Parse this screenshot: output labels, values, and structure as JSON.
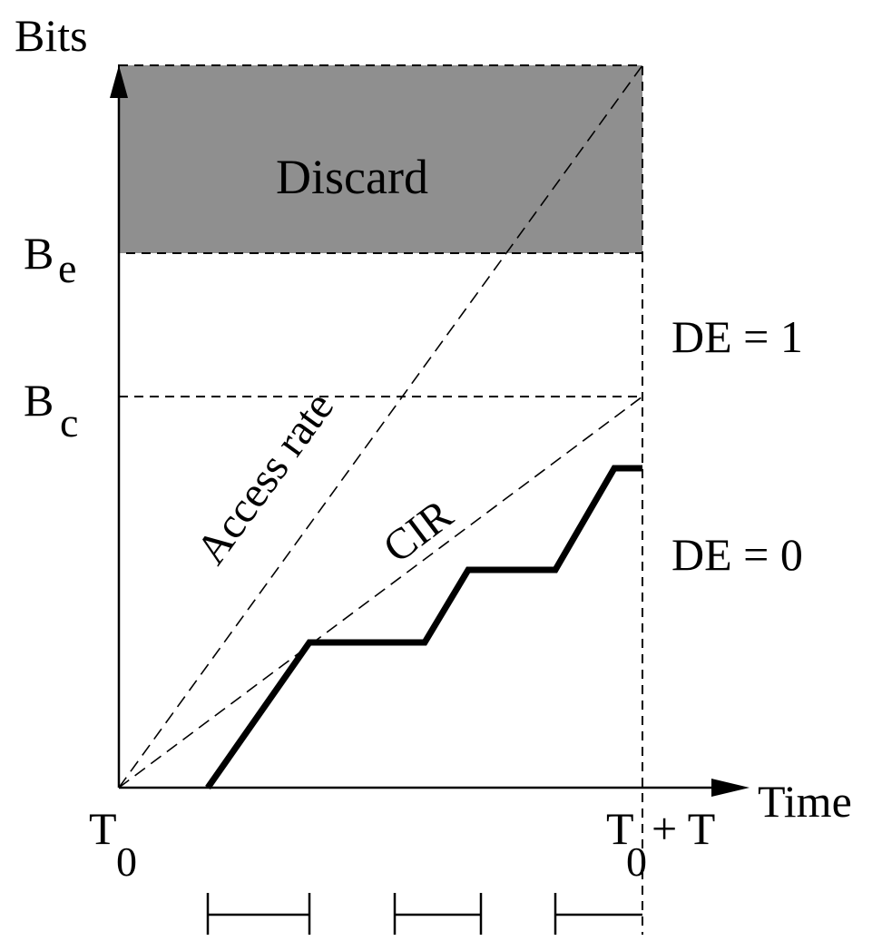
{
  "labels": {
    "y_axis": "Bits",
    "x_axis": "Time",
    "discard": "Discard",
    "be_main": "B",
    "be_sub": "e",
    "bc_main": "B",
    "bc_sub": "c",
    "de1": "DE = 1",
    "de0": "DE = 0",
    "access_rate": "Access rate",
    "cir": "CIR",
    "t0_main": "T",
    "t0_sub": "0",
    "tend_main": "T",
    "tend_sub": "0",
    "tend_rest": "+ T"
  },
  "colors": {
    "discard_fill": "#8f8f8f",
    "line": "#000000"
  }
}
